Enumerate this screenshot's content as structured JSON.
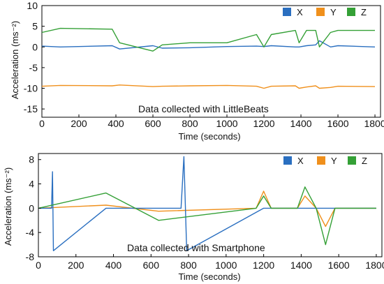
{
  "colors": {
    "X": "#2a6fc0",
    "Y": "#f0901c",
    "Z": "#34a036"
  },
  "chart_data": [
    {
      "type": "line",
      "annotation": "Data collected with LittleBeats",
      "xlabel": "Time (seconds)",
      "ylabel": "Acceleration (ms⁻²)",
      "xlim": [
        0,
        1830
      ],
      "ylim": [
        -17,
        10
      ],
      "xticks": [
        0,
        200,
        400,
        600,
        800,
        1000,
        1200,
        1400,
        1600,
        1800
      ],
      "yticks": [
        10,
        5,
        0,
        -5,
        -10,
        -15
      ],
      "x_tick_labels": [
        "0",
        "200",
        "400",
        "600",
        "800",
        "1000",
        "1200",
        "1400",
        "1600",
        "1800"
      ],
      "y_tick_labels": [
        "10",
        "5",
        "0",
        "-5",
        "-10",
        "-15"
      ],
      "legend": [
        "X",
        "Y",
        "Z"
      ],
      "series": [
        {
          "name": "X",
          "x": [
            0,
            100,
            380,
            420,
            600,
            650,
            800,
            1000,
            1160,
            1200,
            1240,
            1370,
            1390,
            1430,
            1480,
            1500,
            1560,
            1600,
            1800
          ],
          "values": [
            0.2,
            0.0,
            0.3,
            -0.5,
            0.3,
            -0.3,
            -0.2,
            0.1,
            0.2,
            0.1,
            0.3,
            0.0,
            0.0,
            0.3,
            0.5,
            1.5,
            0.0,
            0.3,
            0.0
          ]
        },
        {
          "name": "Y",
          "x": [
            0,
            100,
            380,
            420,
            600,
            650,
            800,
            1000,
            1160,
            1200,
            1240,
            1370,
            1390,
            1430,
            1480,
            1500,
            1560,
            1600,
            1800
          ],
          "values": [
            -9.5,
            -9.3,
            -9.4,
            -9.2,
            -9.6,
            -9.5,
            -9.4,
            -9.3,
            -9.5,
            -10.0,
            -9.5,
            -9.4,
            -10.0,
            -9.7,
            -9.4,
            -10.0,
            -9.8,
            -9.5,
            -9.6
          ]
        },
        {
          "name": "Z",
          "x": [
            0,
            100,
            380,
            420,
            600,
            650,
            800,
            1000,
            1160,
            1200,
            1240,
            1370,
            1390,
            1430,
            1480,
            1500,
            1560,
            1600,
            1800
          ],
          "values": [
            3.5,
            4.5,
            4.3,
            1.0,
            -1.0,
            0.5,
            1.0,
            1.0,
            3.0,
            0.0,
            3.0,
            4.0,
            1.0,
            4.0,
            4.0,
            0.0,
            3.5,
            4.0,
            4.0
          ]
        }
      ]
    },
    {
      "type": "line",
      "annotation": "Data collected with Smartphone",
      "xlabel": "Time (seconds)",
      "ylabel": "Acceleration (ms⁻²)",
      "xlim": [
        0,
        1830
      ],
      "ylim": [
        -8,
        9
      ],
      "xticks": [
        0,
        200,
        400,
        600,
        800,
        1000,
        1200,
        1400,
        1600,
        1800
      ],
      "yticks": [
        8,
        4,
        0,
        -4,
        -8
      ],
      "x_tick_labels": [
        "0",
        "200",
        "400",
        "600",
        "800",
        "1000",
        "1200",
        "1400",
        "1600",
        "1800"
      ],
      "y_tick_labels": [
        "8",
        "4",
        "0",
        "-4",
        "-8"
      ],
      "legend": [
        "X",
        "Y",
        "Z"
      ],
      "series": [
        {
          "name": "X",
          "x": [
            0,
            70,
            75,
            80,
            360,
            640,
            760,
            775,
            790,
            1200,
            1400,
            1520,
            1800
          ],
          "values": [
            0.0,
            0.0,
            6.0,
            -7.0,
            0.0,
            0.0,
            0.0,
            8.5,
            -7.0,
            0.0,
            0.0,
            0.0,
            0.0
          ]
        },
        {
          "name": "Y",
          "x": [
            0,
            360,
            640,
            1160,
            1200,
            1240,
            1380,
            1420,
            1480,
            1530,
            1580,
            1800
          ],
          "values": [
            0.0,
            0.5,
            -0.5,
            0.0,
            2.8,
            0.0,
            0.0,
            2.0,
            0.0,
            -3.0,
            0.0,
            0.0
          ]
        },
        {
          "name": "Z",
          "x": [
            0,
            360,
            640,
            1160,
            1200,
            1240,
            1380,
            1420,
            1480,
            1530,
            1580,
            1800
          ],
          "values": [
            0.0,
            2.5,
            -2.0,
            0.0,
            2.0,
            0.0,
            0.0,
            3.5,
            0.0,
            -6.0,
            0.0,
            0.0
          ]
        }
      ]
    }
  ]
}
